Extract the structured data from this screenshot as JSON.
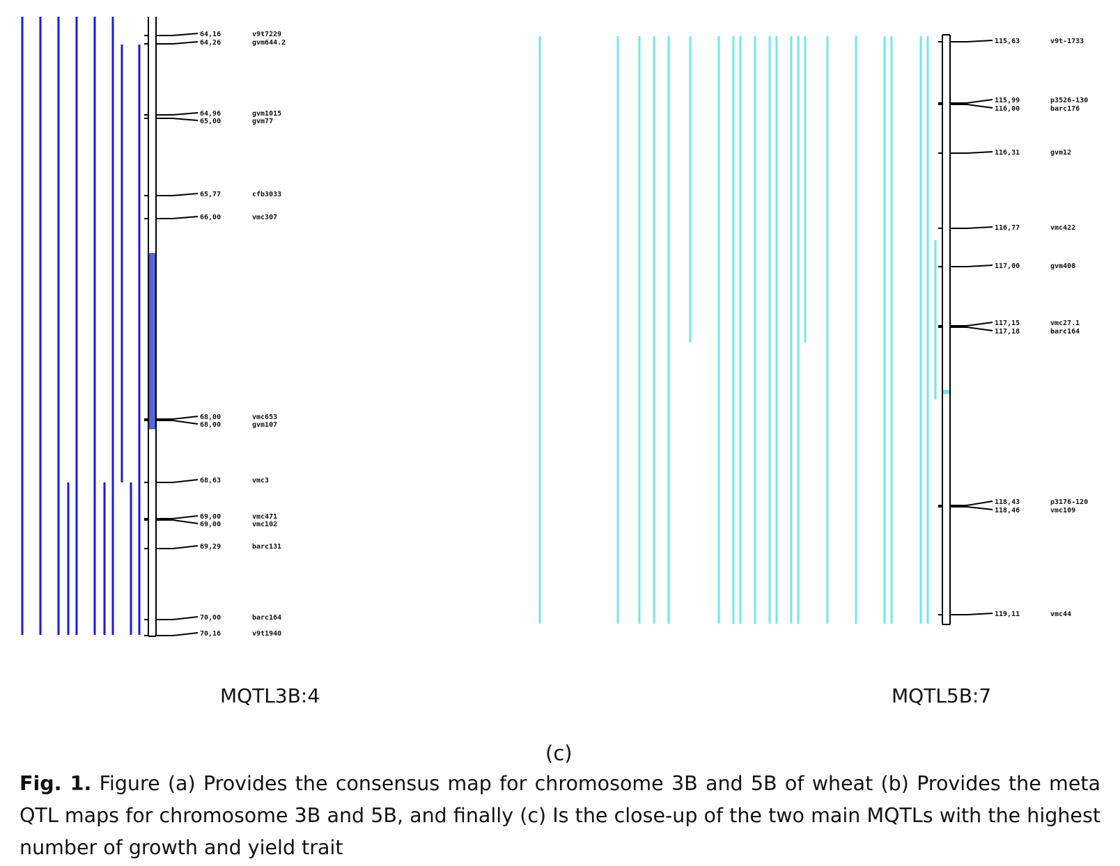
{
  "maps": [
    {
      "label": "MQTL3B:4",
      "bar_color": "#1a1adc",
      "markers": [
        {
          "pos": "64,16",
          "name": "v9t7229"
        },
        {
          "pos": "64,26",
          "name": "gvm644.2"
        },
        {
          "pos": "64,96",
          "name": "gvm1015"
        },
        {
          "pos": "65,00",
          "name": "gvm77"
        },
        {
          "pos": "65,77",
          "name": "cfb3033"
        },
        {
          "pos": "66,00",
          "name": "vmc307"
        },
        {
          "pos": "68,00",
          "name": "vmc653"
        },
        {
          "pos": "68,00",
          "name": "gvm107"
        },
        {
          "pos": "68,63",
          "name": "vmc3"
        },
        {
          "pos": "69,00",
          "name": "vmc471"
        },
        {
          "pos": "69,00",
          "name": "vmc102"
        },
        {
          "pos": "69,29",
          "name": "barc131"
        },
        {
          "pos": "70,00",
          "name": "barc164"
        },
        {
          "pos": "70,16",
          "name": "v9t1940"
        }
      ]
    },
    {
      "label": "MQTL5B:7",
      "bar_color": "#6fe8ee",
      "markers": [
        {
          "pos": "115,63",
          "name": "v9t-1733"
        },
        {
          "pos": "115,99",
          "name": "p3526-130"
        },
        {
          "pos": "116,00",
          "name": "barc176"
        },
        {
          "pos": "116,31",
          "name": "gvm12"
        },
        {
          "pos": "116,77",
          "name": "vmc422"
        },
        {
          "pos": "117,00",
          "name": "gvm408"
        },
        {
          "pos": "117,15",
          "name": "vmc27.1"
        },
        {
          "pos": "117,18",
          "name": "barc164"
        },
        {
          "pos": "118,43",
          "name": "p3176-120"
        },
        {
          "pos": "118,46",
          "name": "vmc109"
        },
        {
          "pos": "119,11",
          "name": "vmc44"
        }
      ]
    }
  ],
  "panel_letter": "(c)",
  "caption": {
    "lead": "Fig. 1.",
    "text": " Figure (a) Provides the consensus map for chromosome 3B and 5B of wheat (b) Provides the meta QTL maps for chromosome 3B and 5B, and finally (c) Is the close-up of the two main MQTLs with the highest number of growth and yield trait"
  }
}
